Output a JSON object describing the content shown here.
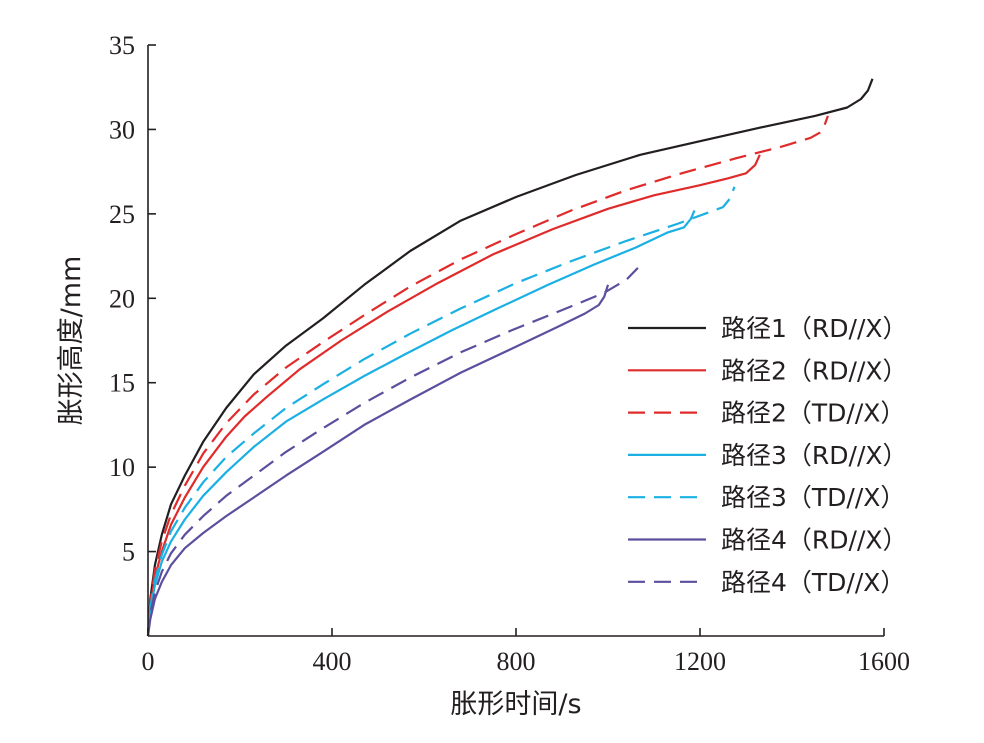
{
  "chart_data": {
    "type": "line",
    "title": "",
    "xlabel": "胀形时间/s",
    "ylabel": "胀形高度/mm",
    "xlim": [
      0,
      1600
    ],
    "ylim": [
      0,
      35
    ],
    "xticks": [
      0,
      400,
      800,
      1200,
      1600
    ],
    "yticks": [
      5,
      10,
      15,
      20,
      25,
      30,
      35
    ],
    "grid": false,
    "legend_position": "right",
    "series": [
      {
        "name": "路径1（RD//X）",
        "color": "#231f20",
        "dash": "solid",
        "x": [
          0,
          5,
          15,
          30,
          50,
          80,
          120,
          170,
          230,
          300,
          380,
          470,
          570,
          680,
          800,
          930,
          1070,
          1200,
          1330,
          1450,
          1520,
          1550,
          1565,
          1575
        ],
        "y": [
          0,
          2.2,
          4.2,
          6.0,
          7.8,
          9.5,
          11.5,
          13.5,
          15.5,
          17.2,
          18.8,
          20.8,
          22.8,
          24.6,
          26.0,
          27.3,
          28.5,
          29.3,
          30.1,
          30.8,
          31.3,
          31.8,
          32.3,
          33.0
        ]
      },
      {
        "name": "路径2（RD//X）",
        "color": "#e02b2b",
        "dash": "solid",
        "x": [
          0,
          5,
          15,
          30,
          50,
          80,
          120,
          170,
          210,
          260,
          330,
          420,
          520,
          630,
          750,
          880,
          1000,
          1100,
          1200,
          1260,
          1300,
          1320,
          1330
        ],
        "y": [
          0,
          1.8,
          3.5,
          5.0,
          6.6,
          8.2,
          10.0,
          11.8,
          13.0,
          14.2,
          15.8,
          17.5,
          19.2,
          20.9,
          22.6,
          24.1,
          25.3,
          26.1,
          26.7,
          27.1,
          27.4,
          27.9,
          28.5
        ]
      },
      {
        "name": "路径2（TD//X）",
        "color": "#e02b2b",
        "dash": "dashed",
        "x": [
          0,
          5,
          15,
          30,
          50,
          80,
          120,
          170,
          230,
          300,
          380,
          470,
          570,
          680,
          800,
          920,
          1040,
          1160,
          1280,
          1380,
          1440,
          1460,
          1470,
          1478
        ],
        "y": [
          0,
          2.0,
          3.9,
          5.6,
          7.2,
          8.9,
          10.8,
          12.6,
          14.3,
          15.9,
          17.4,
          19.0,
          20.7,
          22.3,
          23.8,
          25.2,
          26.4,
          27.4,
          28.3,
          29.0,
          29.5,
          29.8,
          30.2,
          30.8
        ]
      },
      {
        "name": "路径3（RD//X）",
        "color": "#1ab0e3",
        "dash": "solid",
        "x": [
          0,
          5,
          15,
          30,
          50,
          80,
          120,
          170,
          230,
          300,
          380,
          470,
          560,
          660,
          760,
          870,
          970,
          1060,
          1130,
          1165,
          1180,
          1188
        ],
        "y": [
          0,
          1.5,
          3.0,
          4.4,
          5.6,
          6.9,
          8.3,
          9.7,
          11.2,
          12.7,
          14.0,
          15.4,
          16.7,
          18.1,
          19.4,
          20.8,
          22.0,
          23.0,
          23.9,
          24.2,
          24.7,
          25.2
        ]
      },
      {
        "name": "路径3（TD//X）",
        "color": "#1ab0e3",
        "dash": "dashed",
        "x": [
          0,
          5,
          15,
          30,
          50,
          80,
          120,
          170,
          230,
          300,
          380,
          470,
          570,
          680,
          800,
          920,
          1040,
          1150,
          1220,
          1250,
          1265,
          1275
        ],
        "y": [
          0,
          1.7,
          3.3,
          4.8,
          6.2,
          7.6,
          9.1,
          10.6,
          12.0,
          13.5,
          14.9,
          16.4,
          17.9,
          19.4,
          20.9,
          22.2,
          23.4,
          24.4,
          25.1,
          25.4,
          25.9,
          26.6
        ]
      },
      {
        "name": "路径4（RD//X）",
        "color": "#5b4f9e",
        "dash": "solid",
        "x": [
          0,
          5,
          15,
          30,
          50,
          80,
          120,
          170,
          230,
          300,
          380,
          470,
          570,
          680,
          790,
          890,
          950,
          980,
          992,
          1000
        ],
        "y": [
          0,
          1.0,
          2.2,
          3.2,
          4.2,
          5.2,
          6.1,
          7.1,
          8.2,
          9.5,
          10.9,
          12.5,
          14.0,
          15.6,
          17.0,
          18.3,
          19.1,
          19.6,
          20.1,
          20.8
        ]
      },
      {
        "name": "路径4（TD//X）",
        "color": "#5b4f9e",
        "dash": "dashed",
        "x": [
          0,
          5,
          15,
          30,
          50,
          80,
          120,
          170,
          230,
          300,
          380,
          470,
          570,
          680,
          790,
          900,
          990,
          1040,
          1065
        ],
        "y": [
          0,
          1.3,
          2.6,
          3.8,
          4.9,
          6.0,
          7.1,
          8.3,
          9.5,
          10.9,
          12.3,
          13.8,
          15.3,
          16.8,
          18.1,
          19.3,
          20.3,
          21.1,
          21.8
        ]
      }
    ]
  }
}
